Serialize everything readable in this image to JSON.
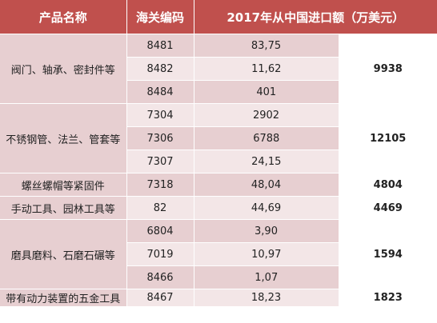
{
  "headers": {
    "name": "产品名称",
    "code": "海关编码",
    "imports": "2017年从中国进口额（万美元）",
    "total": ""
  },
  "groups": [
    {
      "name": "阀门、轴承、密封件等",
      "total": "9938",
      "rows": [
        {
          "code": "8481",
          "value": "83,75"
        },
        {
          "code": "8482",
          "value": "11,62"
        },
        {
          "code": "8484",
          "value": "401"
        }
      ]
    },
    {
      "name": "不锈钢管、法兰、管套等",
      "total": "12105",
      "rows": [
        {
          "code": "7304",
          "value": "2902"
        },
        {
          "code": "7306",
          "value": "6788"
        },
        {
          "code": "7307",
          "value": "24,15"
        }
      ]
    },
    {
      "name": "螺丝螺帽等紧固件",
      "total": "4804",
      "rows": [
        {
          "code": "7318",
          "value": "48,04"
        }
      ]
    },
    {
      "name": "手动工具、园林工具等",
      "total": "4469",
      "rows": [
        {
          "code": "82",
          "value": "44,69"
        }
      ]
    },
    {
      "name": "磨具磨料、石磨石碾等",
      "total": "1594",
      "rows": [
        {
          "code": "6804",
          "value": "3,90"
        },
        {
          "code": "7019",
          "value": "10,97"
        },
        {
          "code": "8466",
          "value": "1,07"
        }
      ]
    },
    {
      "name": "带有动力装置的五金工具",
      "total": "1823",
      "rows": [
        {
          "code": "8467",
          "value": "18,23"
        }
      ]
    }
  ]
}
